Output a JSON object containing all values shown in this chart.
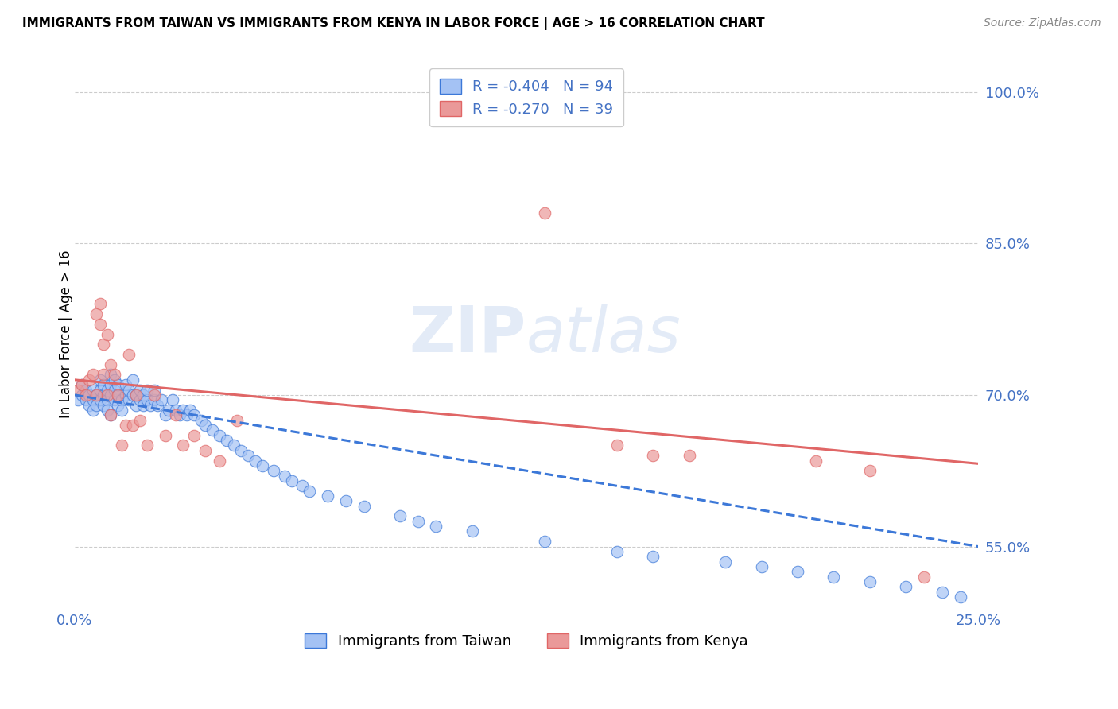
{
  "title": "IMMIGRANTS FROM TAIWAN VS IMMIGRANTS FROM KENYA IN LABOR FORCE | AGE > 16 CORRELATION CHART",
  "source": "Source: ZipAtlas.com",
  "ylabel": "In Labor Force | Age > 16",
  "xlim": [
    0.0,
    0.25
  ],
  "ylim": [
    0.49,
    1.03
  ],
  "taiwan_R": -0.404,
  "taiwan_N": 94,
  "kenya_R": -0.27,
  "kenya_N": 39,
  "taiwan_color": "#a4c2f4",
  "kenya_color": "#ea9999",
  "taiwan_line_color": "#3c78d8",
  "kenya_line_color": "#e06666",
  "background_color": "#ffffff",
  "grid_color": "#b7b7b7",
  "axis_label_color": "#4472c4",
  "watermark": "ZIPatlas",
  "taiwan_x": [
    0.001,
    0.002,
    0.002,
    0.003,
    0.003,
    0.004,
    0.004,
    0.005,
    0.005,
    0.005,
    0.006,
    0.006,
    0.007,
    0.007,
    0.007,
    0.008,
    0.008,
    0.008,
    0.009,
    0.009,
    0.009,
    0.01,
    0.01,
    0.01,
    0.01,
    0.011,
    0.011,
    0.011,
    0.012,
    0.012,
    0.012,
    0.013,
    0.013,
    0.014,
    0.014,
    0.015,
    0.015,
    0.016,
    0.016,
    0.017,
    0.017,
    0.018,
    0.018,
    0.019,
    0.019,
    0.02,
    0.02,
    0.021,
    0.022,
    0.022,
    0.023,
    0.024,
    0.025,
    0.026,
    0.027,
    0.028,
    0.029,
    0.03,
    0.031,
    0.032,
    0.033,
    0.035,
    0.036,
    0.038,
    0.04,
    0.042,
    0.044,
    0.046,
    0.048,
    0.05,
    0.052,
    0.055,
    0.058,
    0.06,
    0.063,
    0.065,
    0.07,
    0.075,
    0.08,
    0.09,
    0.095,
    0.1,
    0.11,
    0.13,
    0.15,
    0.16,
    0.18,
    0.19,
    0.2,
    0.21,
    0.22,
    0.23,
    0.24,
    0.245
  ],
  "taiwan_y": [
    0.695,
    0.7,
    0.71,
    0.695,
    0.705,
    0.69,
    0.7,
    0.695,
    0.685,
    0.705,
    0.7,
    0.69,
    0.695,
    0.705,
    0.715,
    0.69,
    0.7,
    0.71,
    0.695,
    0.685,
    0.705,
    0.7,
    0.71,
    0.72,
    0.68,
    0.695,
    0.705,
    0.715,
    0.69,
    0.7,
    0.71,
    0.695,
    0.685,
    0.7,
    0.71,
    0.695,
    0.705,
    0.7,
    0.715,
    0.69,
    0.7,
    0.695,
    0.705,
    0.69,
    0.7,
    0.695,
    0.705,
    0.69,
    0.695,
    0.705,
    0.69,
    0.695,
    0.68,
    0.685,
    0.695,
    0.685,
    0.68,
    0.685,
    0.68,
    0.685,
    0.68,
    0.675,
    0.67,
    0.665,
    0.66,
    0.655,
    0.65,
    0.645,
    0.64,
    0.635,
    0.63,
    0.625,
    0.62,
    0.615,
    0.61,
    0.605,
    0.6,
    0.595,
    0.59,
    0.58,
    0.575,
    0.57,
    0.565,
    0.555,
    0.545,
    0.54,
    0.535,
    0.53,
    0.525,
    0.52,
    0.515,
    0.51,
    0.505,
    0.5
  ],
  "kenya_x": [
    0.001,
    0.002,
    0.003,
    0.004,
    0.005,
    0.006,
    0.006,
    0.007,
    0.007,
    0.008,
    0.008,
    0.009,
    0.009,
    0.01,
    0.01,
    0.011,
    0.012,
    0.013,
    0.014,
    0.015,
    0.016,
    0.017,
    0.018,
    0.02,
    0.022,
    0.025,
    0.028,
    0.03,
    0.033,
    0.036,
    0.04,
    0.045,
    0.13,
    0.15,
    0.16,
    0.17,
    0.205,
    0.22,
    0.235
  ],
  "kenya_y": [
    0.705,
    0.71,
    0.7,
    0.715,
    0.72,
    0.7,
    0.78,
    0.77,
    0.79,
    0.72,
    0.75,
    0.7,
    0.76,
    0.73,
    0.68,
    0.72,
    0.7,
    0.65,
    0.67,
    0.74,
    0.67,
    0.7,
    0.675,
    0.65,
    0.7,
    0.66,
    0.68,
    0.65,
    0.66,
    0.645,
    0.635,
    0.675,
    0.88,
    0.65,
    0.64,
    0.64,
    0.635,
    0.625,
    0.52
  ],
  "taiwan_trend_x": [
    0.0,
    0.25
  ],
  "taiwan_trend_y": [
    0.7,
    0.55
  ],
  "kenya_trend_x": [
    0.0,
    0.25
  ],
  "kenya_trend_y": [
    0.715,
    0.632
  ],
  "legend_taiwan_label": "R = -0.404   N = 94",
  "legend_kenya_label": "R = -0.270   N = 39",
  "bottom_legend_taiwan": "Immigrants from Taiwan",
  "bottom_legend_kenya": "Immigrants from Kenya"
}
